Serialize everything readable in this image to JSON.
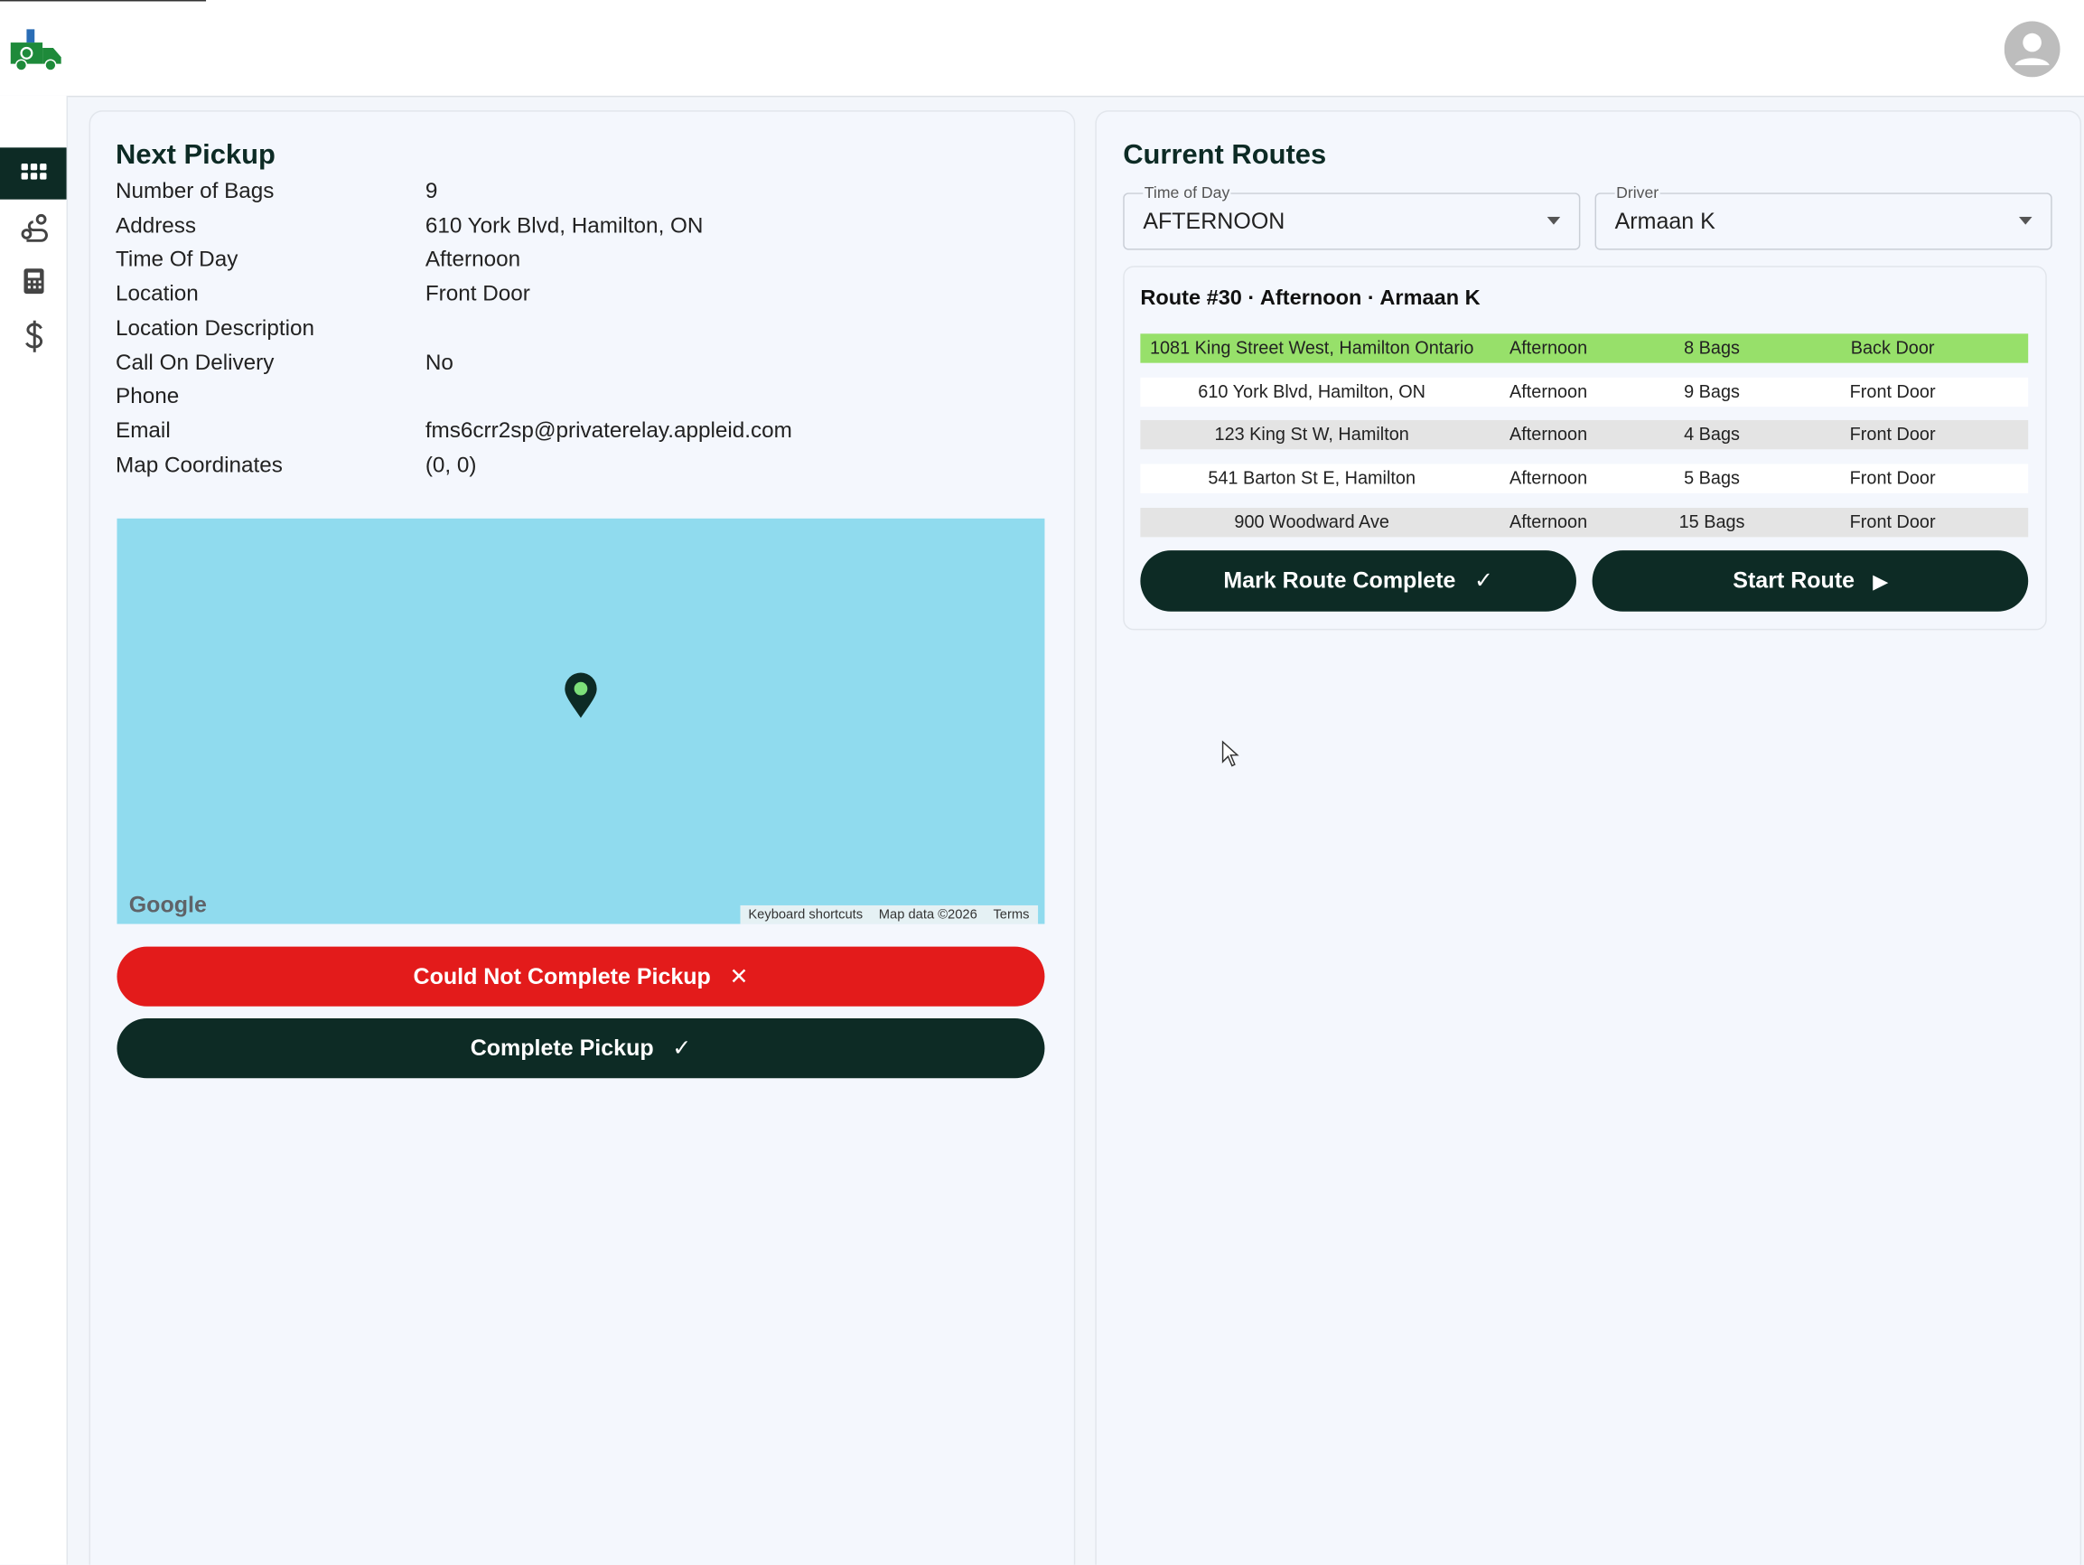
{
  "next_pickup": {
    "title": "Next Pickup",
    "fields": [
      {
        "label": "Number of Bags",
        "value": "9"
      },
      {
        "label": "Address",
        "value": "610 York Blvd, Hamilton, ON"
      },
      {
        "label": "Time Of Day",
        "value": "Afternoon"
      },
      {
        "label": "Location",
        "value": "Front Door"
      },
      {
        "label": "Location Description"
      },
      {
        "label": "Call On Delivery",
        "value": "No"
      },
      {
        "label": "Phone"
      },
      {
        "label": "Email",
        "value": "fms6crr2sp@privaterelay.appleid.com"
      },
      {
        "label": "Map Coordinates",
        "value": "(0, 0)"
      }
    ],
    "map": {
      "logo": "Google",
      "shortcuts": "Keyboard shortcuts",
      "map_data": "Map data ©2026",
      "terms": "Terms"
    },
    "buttons": [
      "Could Not Complete Pickup",
      "Complete Pickup"
    ]
  },
  "current_routes": {
    "title": "Current Routes",
    "filters": [
      {
        "label": "Time of Day",
        "value": "AFTERNOON"
      },
      {
        "label": "Driver",
        "value": "Armaan K"
      }
    ],
    "route": {
      "title": "Route #30 · Afternoon · Armaan K",
      "rows": [
        [
          "1081 King Street West, Hamilton Ontario",
          "Afternoon",
          "8 Bags",
          "Back Door"
        ],
        [
          "610 York Blvd, Hamilton, ON",
          "Afternoon",
          "9 Bags",
          "Front Door"
        ],
        [
          "123 King St W, Hamilton",
          "Afternoon",
          "4 Bags",
          "Front Door"
        ],
        [
          "541 Barton St E, Hamilton",
          "Afternoon",
          "5 Bags",
          "Front Door"
        ],
        [
          "900 Woodward Ave",
          "Afternoon",
          "15 Bags",
          "Front Door"
        ]
      ]
    },
    "buttons": [
      "Mark Route Complete",
      "Start Route"
    ]
  }
}
